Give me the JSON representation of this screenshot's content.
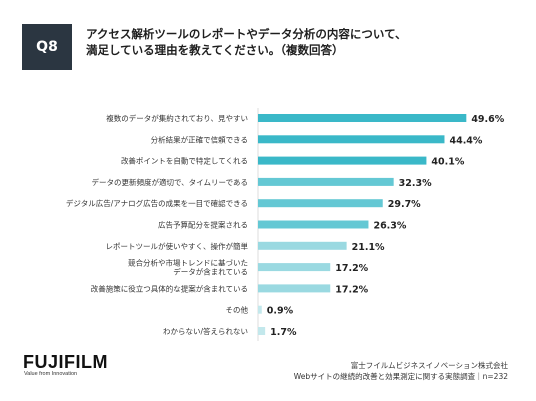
{
  "question_badge": "Q8",
  "title_lines": [
    "アクセス解析ツールのレポートやデータ分析の内容について、",
    "満足している理由を教えてください。（複数回答）"
  ],
  "colors": {
    "bar_dark": "#3ab8c8",
    "bar_mid": "#64c8d4",
    "bar_light": "#9ad9e1",
    "bar_pale": "#c3e8ec",
    "badge_bg": "#2b3641"
  },
  "chart_data": {
    "type": "bar",
    "orientation": "horizontal",
    "categories": [
      "複数のデータが集約されており、見やすい",
      "分析結果が正確で信頼できる",
      "改善ポイントを自動で特定してくれる",
      "データの更新頻度が適切で、タイムリーである",
      "デジタル広告/アナログ広告の成果を一目で確認できる",
      "広告予算配分を提案される",
      "レポートツールが使いやすく、操作が簡単",
      "競合分析や市場トレンドに基づいたデータが含まれている",
      "改善施策に役立つ具体的な提案が含まれている",
      "その他",
      "わからない/答えられない"
    ],
    "label_lines": [
      [
        "複数のデータが集約されており、見やすい"
      ],
      [
        "分析結果が正確で信頼できる"
      ],
      [
        "改善ポイントを自動で特定してくれる"
      ],
      [
        "データの更新頻度が適切で、タイムリーである"
      ],
      [
        "デジタル広告/アナログ広告の成果を一目で確認できる"
      ],
      [
        "広告予算配分を提案される"
      ],
      [
        "レポートツールが使いやすく、操作が簡単"
      ],
      [
        "競合分析や市場トレンドに基づいた",
        "データが含まれている"
      ],
      [
        "改善施策に役立つ具体的な提案が含まれている"
      ],
      [
        "その他"
      ],
      [
        "わからない/答えられない"
      ]
    ],
    "values": [
      49.6,
      44.4,
      40.1,
      32.3,
      29.7,
      26.3,
      21.1,
      17.2,
      17.2,
      0.9,
      1.7
    ],
    "value_labels": [
      "49.6%",
      "44.4%",
      "40.1%",
      "32.3%",
      "29.7%",
      "26.3%",
      "21.1%",
      "17.2%",
      "17.2%",
      "0.9%",
      "1.7%"
    ],
    "xlim": [
      0,
      50
    ]
  },
  "logo_text": "FUJIFILM",
  "logo_tagline": "Value from Innovation",
  "footer_lines": [
    "富士フイルムビジネスイノベーション株式会社",
    "Webサイトの継続的改善と効果測定に関する実態調査｜n=232"
  ]
}
